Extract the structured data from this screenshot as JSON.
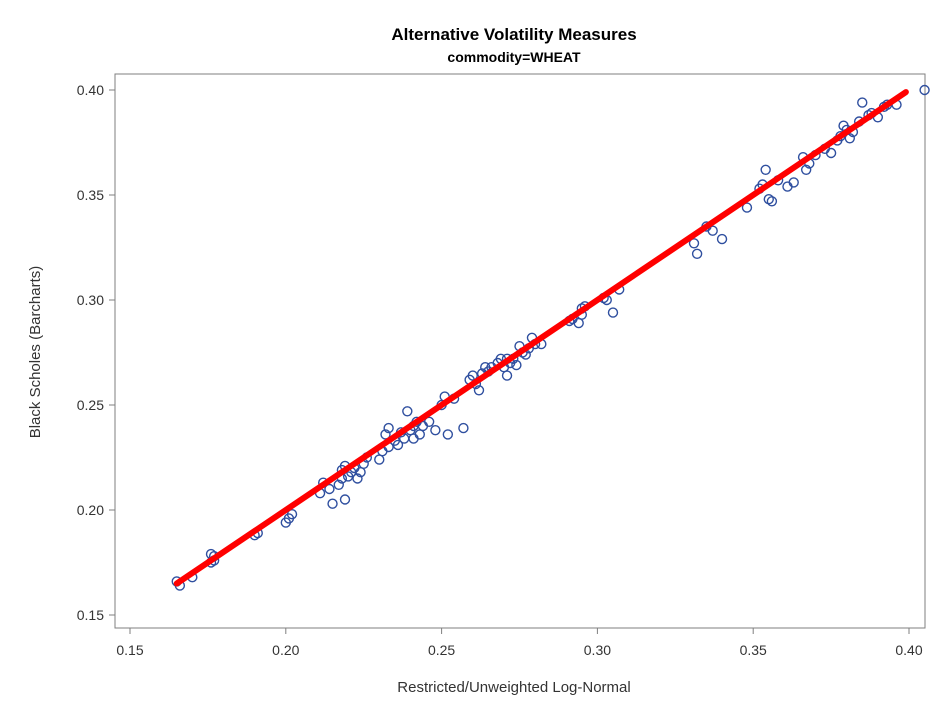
{
  "chart_data": {
    "type": "scatter",
    "title": "Alternative Volatility Measures",
    "subtitle": "commodity=WHEAT",
    "xlabel": "Restricted/Unweighted Log-Normal",
    "ylabel": "Black Scholes (Barcharts)",
    "xlim": [
      0.15,
      0.405
    ],
    "ylim": [
      0.15,
      0.4
    ],
    "x_ticks": [
      "0.15",
      "0.20",
      "0.25",
      "0.30",
      "0.35",
      "0.40"
    ],
    "y_ticks": [
      "0.15",
      "0.20",
      "0.25",
      "0.30",
      "0.35",
      "0.40"
    ],
    "grid": false,
    "marker_color": "#2f4f9f",
    "line_color": "#ff0000",
    "series": [
      {
        "type": "scatter",
        "points": [
          [
            0.165,
            0.166
          ],
          [
            0.166,
            0.164
          ],
          [
            0.17,
            0.168
          ],
          [
            0.176,
            0.175
          ],
          [
            0.177,
            0.176
          ],
          [
            0.177,
            0.178
          ],
          [
            0.176,
            0.179
          ],
          [
            0.19,
            0.188
          ],
          [
            0.191,
            0.189
          ],
          [
            0.2,
            0.194
          ],
          [
            0.201,
            0.196
          ],
          [
            0.202,
            0.198
          ],
          [
            0.211,
            0.208
          ],
          [
            0.212,
            0.213
          ],
          [
            0.214,
            0.21
          ],
          [
            0.215,
            0.203
          ],
          [
            0.217,
            0.212
          ],
          [
            0.218,
            0.215
          ],
          [
            0.218,
            0.219
          ],
          [
            0.219,
            0.205
          ],
          [
            0.219,
            0.221
          ],
          [
            0.22,
            0.216
          ],
          [
            0.221,
            0.218
          ],
          [
            0.222,
            0.22
          ],
          [
            0.223,
            0.215
          ],
          [
            0.224,
            0.218
          ],
          [
            0.225,
            0.222
          ],
          [
            0.226,
            0.225
          ],
          [
            0.23,
            0.224
          ],
          [
            0.231,
            0.228
          ],
          [
            0.232,
            0.236
          ],
          [
            0.233,
            0.239
          ],
          [
            0.233,
            0.23
          ],
          [
            0.235,
            0.233
          ],
          [
            0.236,
            0.231
          ],
          [
            0.237,
            0.237
          ],
          [
            0.238,
            0.234
          ],
          [
            0.239,
            0.247
          ],
          [
            0.24,
            0.238
          ],
          [
            0.241,
            0.24
          ],
          [
            0.241,
            0.234
          ],
          [
            0.242,
            0.242
          ],
          [
            0.243,
            0.236
          ],
          [
            0.244,
            0.24
          ],
          [
            0.246,
            0.242
          ],
          [
            0.248,
            0.238
          ],
          [
            0.25,
            0.25
          ],
          [
            0.251,
            0.254
          ],
          [
            0.252,
            0.236
          ],
          [
            0.254,
            0.253
          ],
          [
            0.257,
            0.239
          ],
          [
            0.259,
            0.262
          ],
          [
            0.26,
            0.264
          ],
          [
            0.261,
            0.26
          ],
          [
            0.262,
            0.257
          ],
          [
            0.263,
            0.265
          ],
          [
            0.264,
            0.268
          ],
          [
            0.265,
            0.266
          ],
          [
            0.266,
            0.268
          ],
          [
            0.268,
            0.27
          ],
          [
            0.269,
            0.272
          ],
          [
            0.27,
            0.268
          ],
          [
            0.271,
            0.264
          ],
          [
            0.271,
            0.272
          ],
          [
            0.272,
            0.27
          ],
          [
            0.273,
            0.272
          ],
          [
            0.274,
            0.269
          ],
          [
            0.275,
            0.278
          ],
          [
            0.276,
            0.275
          ],
          [
            0.277,
            0.274
          ],
          [
            0.278,
            0.277
          ],
          [
            0.279,
            0.282
          ],
          [
            0.28,
            0.279
          ],
          [
            0.282,
            0.279
          ],
          [
            0.291,
            0.29
          ],
          [
            0.292,
            0.291
          ],
          [
            0.294,
            0.289
          ],
          [
            0.295,
            0.293
          ],
          [
            0.295,
            0.296
          ],
          [
            0.296,
            0.297
          ],
          [
            0.302,
            0.301
          ],
          [
            0.303,
            0.3
          ],
          [
            0.305,
            0.294
          ],
          [
            0.307,
            0.305
          ],
          [
            0.331,
            0.327
          ],
          [
            0.332,
            0.322
          ],
          [
            0.335,
            0.335
          ],
          [
            0.337,
            0.333
          ],
          [
            0.34,
            0.329
          ],
          [
            0.348,
            0.344
          ],
          [
            0.352,
            0.353
          ],
          [
            0.353,
            0.355
          ],
          [
            0.354,
            0.362
          ],
          [
            0.355,
            0.348
          ],
          [
            0.356,
            0.347
          ],
          [
            0.358,
            0.357
          ],
          [
            0.361,
            0.354
          ],
          [
            0.363,
            0.356
          ],
          [
            0.366,
            0.368
          ],
          [
            0.367,
            0.362
          ],
          [
            0.368,
            0.365
          ],
          [
            0.37,
            0.369
          ],
          [
            0.373,
            0.372
          ],
          [
            0.375,
            0.37
          ],
          [
            0.377,
            0.376
          ],
          [
            0.378,
            0.378
          ],
          [
            0.379,
            0.383
          ],
          [
            0.38,
            0.381
          ],
          [
            0.381,
            0.377
          ],
          [
            0.382,
            0.38
          ],
          [
            0.384,
            0.385
          ],
          [
            0.385,
            0.394
          ],
          [
            0.387,
            0.388
          ],
          [
            0.388,
            0.389
          ],
          [
            0.39,
            0.387
          ],
          [
            0.392,
            0.392
          ],
          [
            0.393,
            0.393
          ],
          [
            0.396,
            0.393
          ],
          [
            0.405,
            0.4
          ]
        ]
      },
      {
        "type": "line",
        "points": [
          [
            0.165,
            0.165
          ],
          [
            0.399,
            0.399
          ]
        ]
      }
    ]
  }
}
